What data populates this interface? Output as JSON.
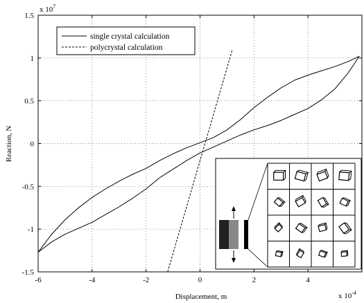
{
  "chart_data": {
    "type": "line",
    "title": "",
    "xlabel": "Displacement, m",
    "ylabel": "Reaction, N",
    "x_multiplier": "x 10",
    "x_multiplier_exp": "-4",
    "y_multiplier": "x 10",
    "y_multiplier_exp": "7",
    "xlim": [
      -6,
      6
    ],
    "ylim": [
      -1.5,
      1.5
    ],
    "xticks": [
      -6,
      -4,
      -2,
      0,
      2,
      4
    ],
    "xtick_labels": [
      "-6",
      "-4",
      "-2",
      "0",
      "2",
      "4"
    ],
    "yticks": [
      -1.5,
      -1,
      -0.5,
      0,
      0.5,
      1,
      1.5
    ],
    "ytick_labels": [
      "-1.5",
      "-1",
      "-0.5",
      "0",
      "0.5",
      "1",
      "1.5"
    ],
    "grid": true,
    "legend_position": "top-left",
    "series": [
      {
        "name": "single crystal calculation",
        "style": "solid",
        "color": "#000000",
        "x": [
          -6.0,
          -5.5,
          -5.0,
          -4.5,
          -4.0,
          -3.5,
          -3.0,
          -2.5,
          -2.0,
          -1.5,
          -1.0,
          -0.5,
          0.0,
          0.5,
          1.0,
          1.5,
          2.0,
          2.5,
          3.0,
          3.5,
          4.0,
          4.5,
          5.0,
          5.5,
          5.9,
          5.5,
          5.0,
          4.5,
          4.0,
          3.5,
          3.0,
          2.5,
          2.0,
          1.5,
          1.0,
          0.5,
          0.0,
          -0.5,
          -1.0,
          -1.5,
          -2.0,
          -2.5,
          -3.0,
          -3.5,
          -4.0,
          -4.5,
          -5.0,
          -5.5,
          -6.0
        ],
        "y": [
          -1.27,
          -1.15,
          -1.06,
          -0.99,
          -0.92,
          -0.83,
          -0.74,
          -0.64,
          -0.53,
          -0.4,
          -0.3,
          -0.2,
          -0.11,
          -0.04,
          0.03,
          0.1,
          0.16,
          0.21,
          0.27,
          0.34,
          0.41,
          0.51,
          0.64,
          0.83,
          1.02,
          0.96,
          0.9,
          0.85,
          0.8,
          0.74,
          0.65,
          0.54,
          0.42,
          0.28,
          0.16,
          0.07,
          0.01,
          -0.05,
          -0.12,
          -0.2,
          -0.29,
          -0.36,
          -0.44,
          -0.53,
          -0.63,
          -0.75,
          -0.89,
          -1.06,
          -1.27
        ]
      },
      {
        "name": "polycrystal calculation",
        "style": "dashed",
        "color": "#000000",
        "x": [
          -1.2,
          1.2
        ],
        "y": [
          -1.5,
          1.1
        ]
      }
    ]
  },
  "inset": {
    "description_glyphs": [
      "cube-grain",
      "rotated-grain",
      "tilted-grain",
      "flat-grain"
    ],
    "grid_rows": 4,
    "grid_cols": 4
  }
}
